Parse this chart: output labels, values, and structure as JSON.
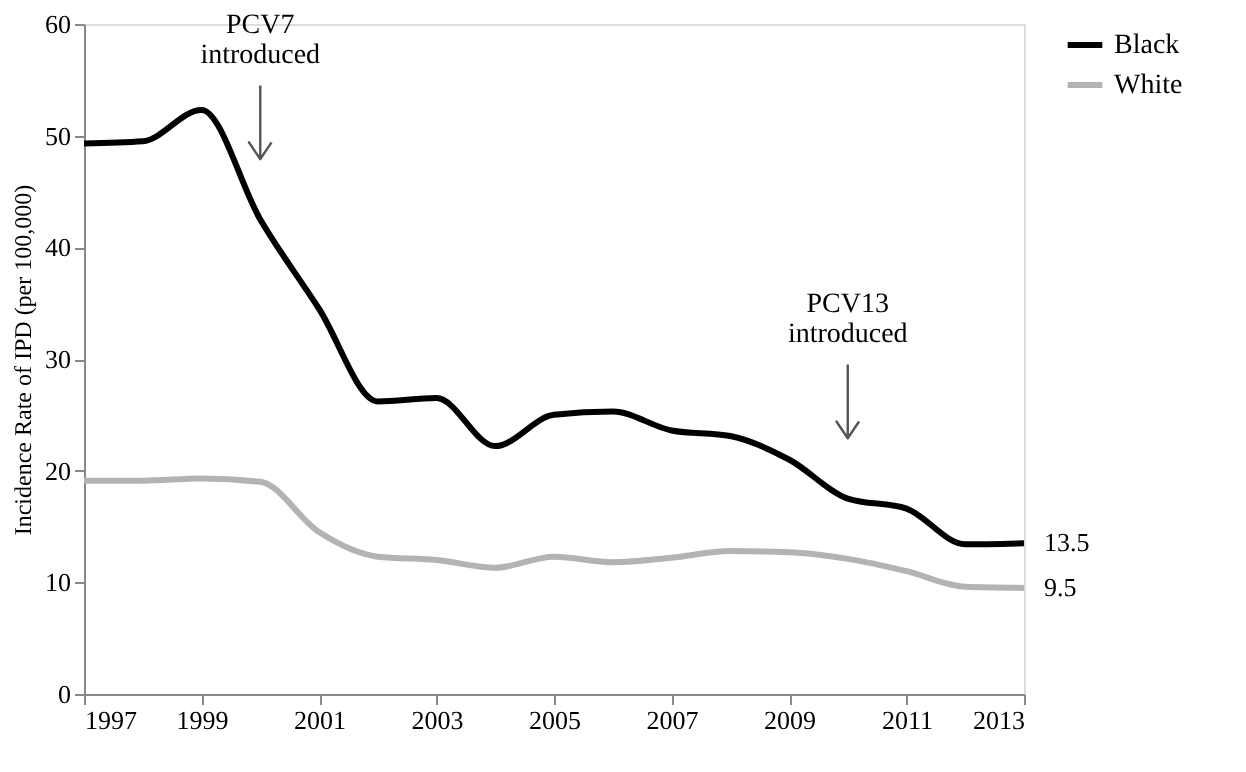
{
  "chart_data": {
    "type": "line",
    "ylabel": "Incidence Rate of IPD (per 100,000)",
    "x": [
      1997,
      1998,
      1999,
      2000,
      2001,
      2002,
      2003,
      2004,
      2005,
      2006,
      2007,
      2008,
      2009,
      2010,
      2011,
      2012,
      2013
    ],
    "series": [
      {
        "name": "Black",
        "color": "#000000",
        "values": [
          49.3,
          49.5,
          52.3,
          42.5,
          34.5,
          26.2,
          26.5,
          22.2,
          25.0,
          25.3,
          23.6,
          23.1,
          21.0,
          17.5,
          16.6,
          13.4,
          13.5
        ],
        "value_labels": [
          null,
          null,
          null,
          null,
          null,
          null,
          null,
          null,
          null,
          null,
          null,
          null,
          null,
          null,
          null,
          null,
          "13.5"
        ]
      },
      {
        "name": "White",
        "color": "#b3b3b3",
        "values": [
          19.1,
          19.1,
          19.3,
          19.0,
          14.5,
          12.3,
          12.0,
          11.3,
          12.3,
          11.8,
          12.2,
          12.8,
          12.7,
          12.1,
          11.0,
          9.6,
          9.5
        ],
        "value_labels": [
          null,
          null,
          null,
          null,
          null,
          null,
          null,
          null,
          null,
          null,
          null,
          null,
          null,
          null,
          null,
          null,
          "9.5"
        ]
      }
    ],
    "xlim": [
      1997,
      2013
    ],
    "xticks": [
      1997,
      1999,
      2001,
      2003,
      2005,
      2007,
      2009,
      2011,
      2013
    ],
    "ylim": [
      0,
      60
    ],
    "yticks": [
      0,
      10,
      20,
      30,
      40,
      50,
      60
    ],
    "ref_lines": [
      {
        "axis": "x",
        "value": 2000,
        "label": "PCV7 introduced",
        "color": "#555555"
      },
      {
        "axis": "x",
        "value": 2010,
        "label": "PCV13 introduced",
        "color": "#555555"
      }
    ],
    "legend": "right",
    "line_style": "solid",
    "grid": false
  }
}
